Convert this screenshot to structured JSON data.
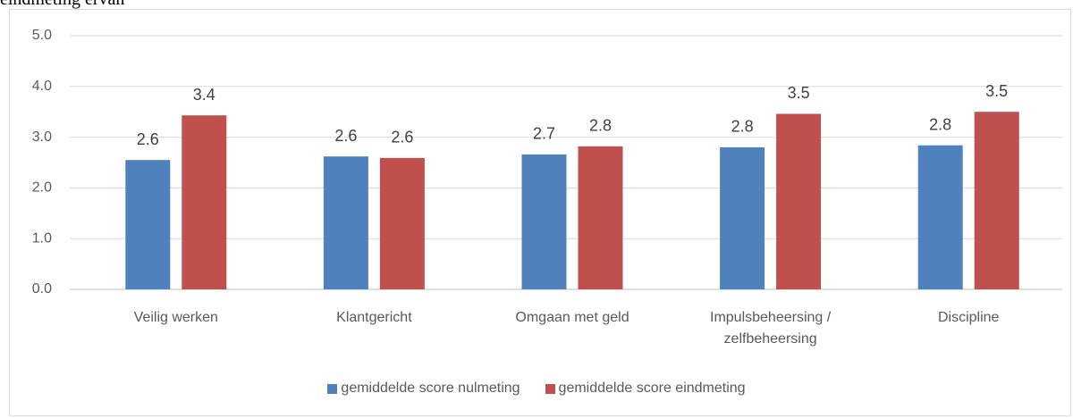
{
  "chart_data": {
    "type": "bar",
    "title": "eindmeting ervan",
    "categories": [
      "Veilig werken",
      "Klantgericht",
      "Omgaan met geld",
      "Impulsbeheersing / zelfbeheersing",
      "Discipline"
    ],
    "series": [
      {
        "name": "gemiddelde score nulmeting",
        "color": "#4f81bd",
        "values": [
          2.55,
          2.62,
          2.66,
          2.8,
          2.84
        ],
        "value_labels": [
          "2.6",
          "2.6",
          "2.7",
          "2.8",
          "2.8"
        ]
      },
      {
        "name": "gemiddelde score eindmeting",
        "color": "#c0504d",
        "values": [
          3.43,
          2.59,
          2.82,
          3.46,
          3.5
        ],
        "value_labels": [
          "3.4",
          "2.6",
          "2.8",
          "3.5",
          "3.5"
        ]
      }
    ],
    "ylim": [
      0,
      5
    ],
    "yticks": [
      {
        "value": 0,
        "label": "0.0"
      },
      {
        "value": 1,
        "label": "1.0"
      },
      {
        "value": 2,
        "label": "2.0"
      },
      {
        "value": 3,
        "label": "3.0"
      },
      {
        "value": 4,
        "label": "4.0"
      },
      {
        "value": 5,
        "label": "5.0"
      }
    ],
    "grid": true,
    "legend": "bottom"
  }
}
